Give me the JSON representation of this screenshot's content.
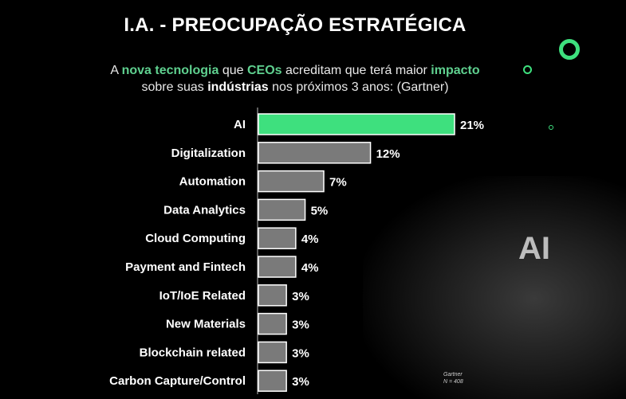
{
  "header": {
    "title": "I.A. - PREOCUPAÇÃO ESTRATÉGICA"
  },
  "subtitle": {
    "p1": "A ",
    "hl1": "nova tecnologia",
    "p2": " que ",
    "hl2": "CEOs",
    "p3": " acreditam que terá maior ",
    "hl3": "impacto",
    "p4": "sobre suas ",
    "b1": "indústrias",
    "p5": " nos próximos 3 anos: (Gartner)"
  },
  "background": {
    "badge_text": "AI"
  },
  "source_note": {
    "line1": "Gartner",
    "line2": "N = 408"
  },
  "colors": {
    "highlight": "#3ee07e",
    "highlight_text": "#5fd08f",
    "bar": "#7a7a7a",
    "bar_border": "#ffffff"
  },
  "chart_data": {
    "type": "bar",
    "orientation": "horizontal",
    "categories": [
      "AI",
      "Digitalization",
      "Automation",
      "Data Analytics",
      "Cloud Computing",
      "Payment and Fintech",
      "IoT/IoE Related",
      "New Materials",
      "Blockchain related",
      "Carbon Capture/Control"
    ],
    "values": [
      21,
      12,
      7,
      5,
      4,
      4,
      3,
      3,
      3,
      3
    ],
    "data_labels": [
      "21%",
      "12%",
      "7%",
      "5%",
      "4%",
      "4%",
      "3%",
      "3%",
      "3%",
      "3%"
    ],
    "highlight_index": 0,
    "xlim": [
      0,
      21
    ],
    "grid": false,
    "legend": "none"
  }
}
